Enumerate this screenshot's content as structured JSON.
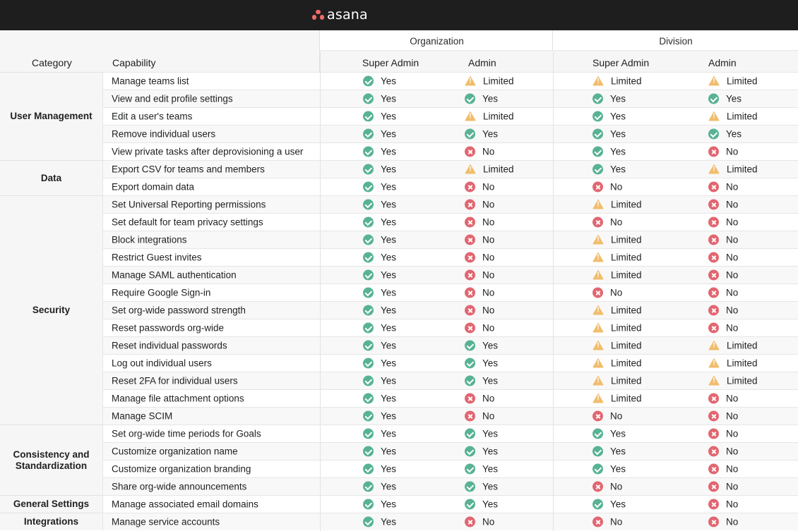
{
  "brand": {
    "name": "asana",
    "accent": "#f06a6a"
  },
  "header": {
    "groups": [
      "Organization",
      "Division"
    ],
    "category": "Category",
    "capability": "Capability",
    "roles": [
      "Super Admin",
      "Admin",
      "Super Admin",
      "Admin"
    ]
  },
  "status_labels": {
    "yes": "Yes",
    "no": "No",
    "limited": "Limited"
  },
  "status_colors": {
    "yes": "#58b393",
    "no": "#e26670",
    "limited": "#f1bd6c"
  },
  "categories": [
    {
      "name": "User Management",
      "rows": 5
    },
    {
      "name": "Data",
      "rows": 2
    },
    {
      "name": "Security",
      "rows": 13
    },
    {
      "name": "Consistency and Standardization",
      "rows": 4
    },
    {
      "name": "General Settings",
      "rows": 1
    },
    {
      "name": "Integrations",
      "rows": 1
    }
  ],
  "rows": [
    {
      "capability": "Manage teams list",
      "values": [
        "yes",
        "limited",
        "limited",
        "limited"
      ]
    },
    {
      "capability": "View and edit profile settings",
      "values": [
        "yes",
        "yes",
        "yes",
        "yes"
      ]
    },
    {
      "capability": "Edit a user's teams",
      "values": [
        "yes",
        "limited",
        "yes",
        "limited"
      ]
    },
    {
      "capability": "Remove individual users",
      "values": [
        "yes",
        "yes",
        "yes",
        "yes"
      ]
    },
    {
      "capability": "View private tasks after deprovisioning a user",
      "values": [
        "yes",
        "no",
        "yes",
        "no"
      ]
    },
    {
      "capability": "Export CSV for teams and members",
      "values": [
        "yes",
        "limited",
        "yes",
        "limited"
      ]
    },
    {
      "capability": "Export domain data",
      "values": [
        "yes",
        "no",
        "no",
        "no"
      ]
    },
    {
      "capability": "Set Universal Reporting permissions",
      "values": [
        "yes",
        "no",
        "limited",
        "no"
      ]
    },
    {
      "capability": "Set default for team privacy settings",
      "values": [
        "yes",
        "no",
        "no",
        "no"
      ]
    },
    {
      "capability": "Block integrations",
      "values": [
        "yes",
        "no",
        "limited",
        "no"
      ]
    },
    {
      "capability": "Restrict Guest invites",
      "values": [
        "yes",
        "no",
        "limited",
        "no"
      ]
    },
    {
      "capability": "Manage SAML authentication",
      "values": [
        "yes",
        "no",
        "limited",
        "no"
      ]
    },
    {
      "capability": "Require Google Sign-in",
      "values": [
        "yes",
        "no",
        "no",
        "no"
      ]
    },
    {
      "capability": "Set org-wide password strength",
      "values": [
        "yes",
        "no",
        "limited",
        "no"
      ]
    },
    {
      "capability": "Reset passwords org-wide",
      "values": [
        "yes",
        "no",
        "limited",
        "no"
      ]
    },
    {
      "capability": "Reset individual passwords",
      "values": [
        "yes",
        "yes",
        "limited",
        "limited"
      ]
    },
    {
      "capability": "Log out individual users",
      "values": [
        "yes",
        "yes",
        "limited",
        "limited"
      ]
    },
    {
      "capability": "Reset 2FA for individual users",
      "values": [
        "yes",
        "yes",
        "limited",
        "limited"
      ]
    },
    {
      "capability": "Manage file attachment options",
      "values": [
        "yes",
        "no",
        "limited",
        "no"
      ]
    },
    {
      "capability": "Manage SCIM",
      "values": [
        "yes",
        "no",
        "no",
        "no"
      ]
    },
    {
      "capability": "Set org-wide time periods for Goals",
      "values": [
        "yes",
        "yes",
        "yes",
        "no"
      ]
    },
    {
      "capability": "Customize organization name",
      "values": [
        "yes",
        "yes",
        "yes",
        "no"
      ]
    },
    {
      "capability": "Customize organization branding",
      "values": [
        "yes",
        "yes",
        "yes",
        "no"
      ]
    },
    {
      "capability": "Share org-wide announcements",
      "values": [
        "yes",
        "yes",
        "no",
        "no"
      ]
    },
    {
      "capability": "Manage associated email domains",
      "values": [
        "yes",
        "yes",
        "yes",
        "no"
      ]
    },
    {
      "capability": "Manage service accounts",
      "values": [
        "yes",
        "no",
        "no",
        "no"
      ]
    }
  ]
}
